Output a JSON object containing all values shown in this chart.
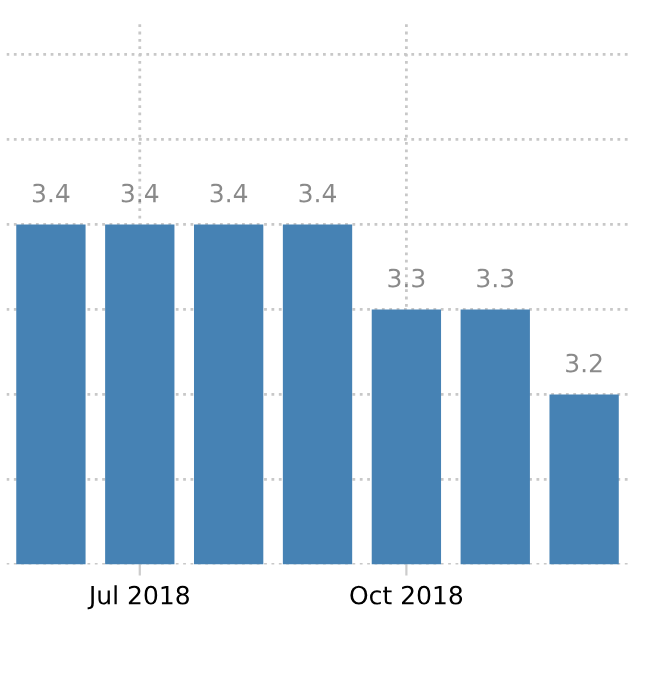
{
  "chart_data": {
    "type": "bar",
    "categories": [
      null,
      "Jul 2018",
      null,
      null,
      "Oct 2018",
      null,
      null
    ],
    "values": [
      3.4,
      3.4,
      3.4,
      3.4,
      3.3,
      3.3,
      3.2
    ],
    "color": "#4682b4",
    "data_labels": true,
    "ylim": [
      3.0,
      3.64
    ],
    "yticks": [
      {
        "value": 3.0,
        "label": null
      },
      {
        "value": 3.1,
        "label": null
      },
      {
        "value": 3.2,
        "label": null
      },
      {
        "value": 3.3,
        "label": null
      },
      {
        "value": 3.4,
        "label": null
      },
      {
        "value": 3.5,
        "label": null
      },
      {
        "value": 3.6,
        "label": null
      }
    ],
    "tick_labels": "x",
    "grid": true
  }
}
